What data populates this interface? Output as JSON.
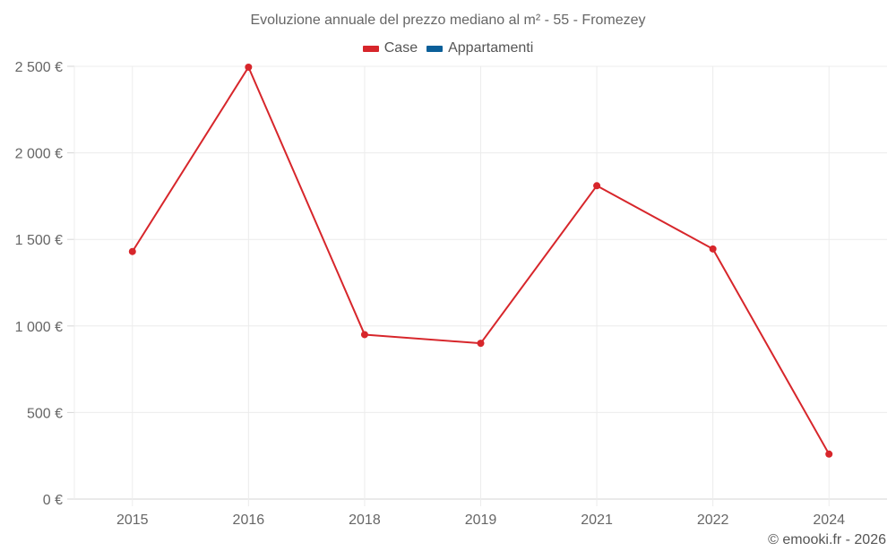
{
  "chart_data": {
    "type": "line",
    "title": "Evoluzione annuale del prezzo mediano al m² - 55 - Fromezey",
    "xlabel": "",
    "ylabel": "",
    "categories": [
      "2015",
      "2016",
      "2018",
      "2019",
      "2021",
      "2022",
      "2024"
    ],
    "series": [
      {
        "name": "Case",
        "color": "#d7262b",
        "values": [
          1430,
          2495,
          950,
          900,
          1810,
          1445,
          260
        ]
      },
      {
        "name": "Appartamenti",
        "color": "#0b5f99",
        "values": []
      }
    ],
    "ylim": [
      0,
      2500
    ],
    "yticks": [
      0,
      500,
      1000,
      1500,
      2000,
      2500
    ],
    "ytick_labels": [
      "0 €",
      "500 €",
      "1 000 €",
      "1 500 €",
      "2 000 €",
      "2 500 €"
    ],
    "grid": true,
    "legend_position": "top"
  },
  "legend": [
    {
      "label": "Case",
      "color": "#d7262b"
    },
    {
      "label": "Appartamenti",
      "color": "#0b5f99"
    }
  ],
  "credit": "© emooki.fr - 2026"
}
